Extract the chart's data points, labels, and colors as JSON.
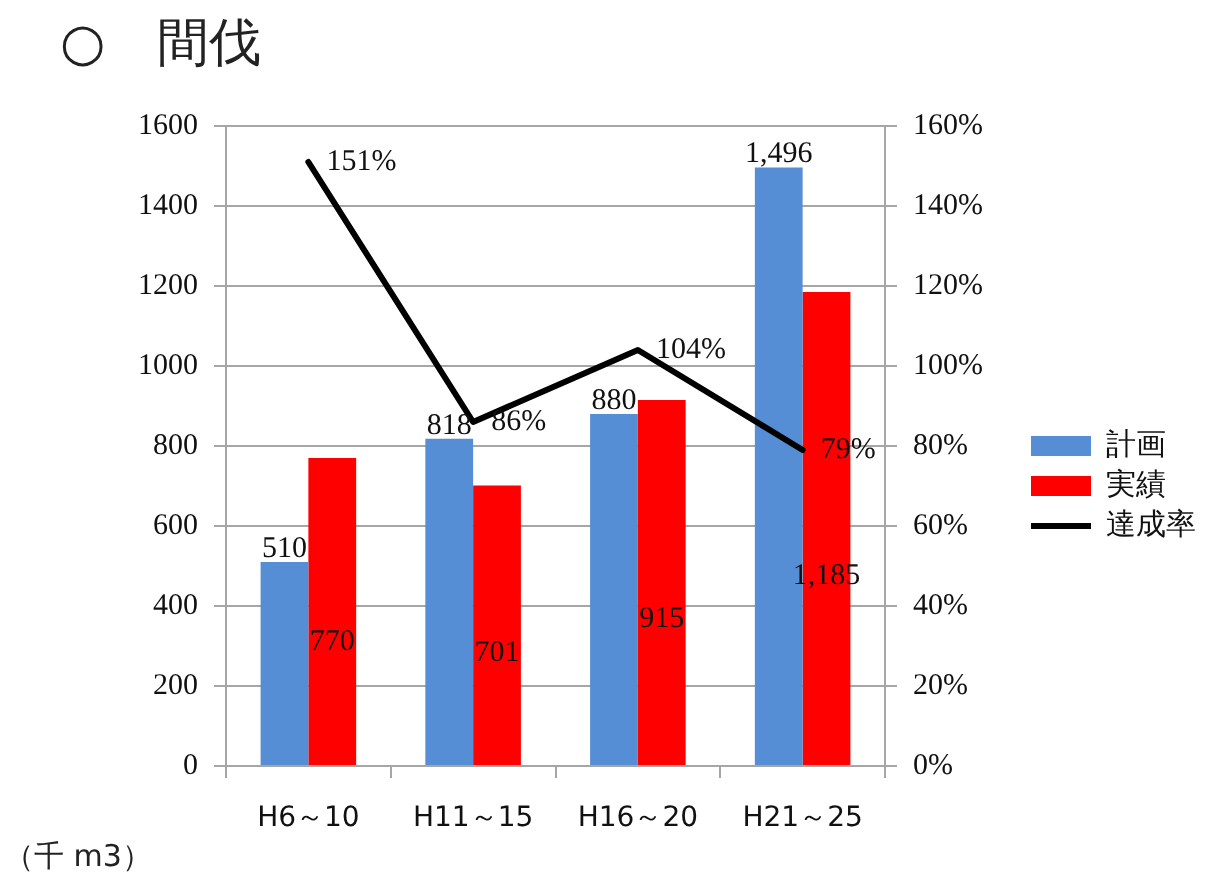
{
  "chart_data": {
    "type": "bar",
    "title": "○　間伐",
    "ylabel": "（千 m3）",
    "categories": [
      "H6～10",
      "H11～15",
      "H16～20",
      "H21～25"
    ],
    "series": [
      {
        "name": "計画",
        "color": "#558ed5",
        "values": [
          510,
          818,
          880,
          1496
        ],
        "value_labels": [
          "510",
          "818",
          "880",
          "1,496"
        ]
      },
      {
        "name": "実績",
        "color": "#ff0000",
        "values": [
          770,
          701,
          915,
          1185
        ],
        "value_labels": [
          "770",
          "701",
          "915",
          "1,185"
        ]
      },
      {
        "name": "達成率",
        "type": "line",
        "axis": "y2",
        "color": "#000000",
        "values": [
          151,
          86,
          104,
          79
        ],
        "value_labels": [
          "151%",
          "86%",
          "104%",
          "79%"
        ]
      }
    ],
    "ylim": [
      0,
      1600
    ],
    "yticks": [
      0,
      200,
      400,
      600,
      800,
      1000,
      1200,
      1400,
      1600
    ],
    "y2lim": [
      0,
      160
    ],
    "y2ticks": [
      {
        "value": 0,
        "label": "0%"
      },
      {
        "value": 20,
        "label": "20%"
      },
      {
        "value": 40,
        "label": "40%"
      },
      {
        "value": 60,
        "label": "60%"
      },
      {
        "value": 80,
        "label": "80%"
      },
      {
        "value": 100,
        "label": "100%"
      },
      {
        "value": 120,
        "label": "120%"
      },
      {
        "value": 140,
        "label": "140%"
      },
      {
        "value": 160,
        "label": "160%"
      }
    ],
    "grid": "y",
    "legend": "right",
    "marker": "none",
    "line_style": "solid"
  }
}
